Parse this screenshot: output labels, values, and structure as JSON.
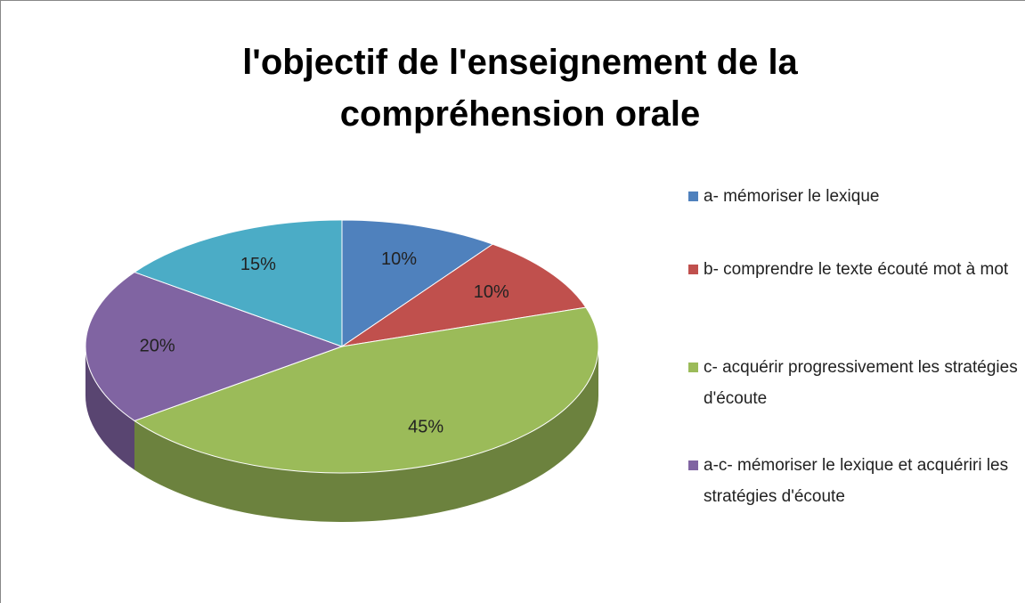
{
  "chart_data": {
    "type": "pie",
    "title": "l'objectif de l'enseignement de la compréhension orale",
    "categories": [
      "a- mémoriser le lexique",
      "b- comprendre le texte écouté mot à mot",
      "c- acquérir progressivement les stratégies d'écoute",
      "a-c- mémoriser le lexique et acquériri les stratégies d'écoute",
      null
    ],
    "values": [
      10,
      10,
      45,
      20,
      15
    ],
    "value_labels": [
      "10%",
      "10%",
      "45%",
      "20%",
      "15%"
    ],
    "colors": [
      "#4f81bd",
      "#c0504d",
      "#9bbb59",
      "#8064a2",
      "#4bacc6"
    ],
    "legend": "right"
  }
}
